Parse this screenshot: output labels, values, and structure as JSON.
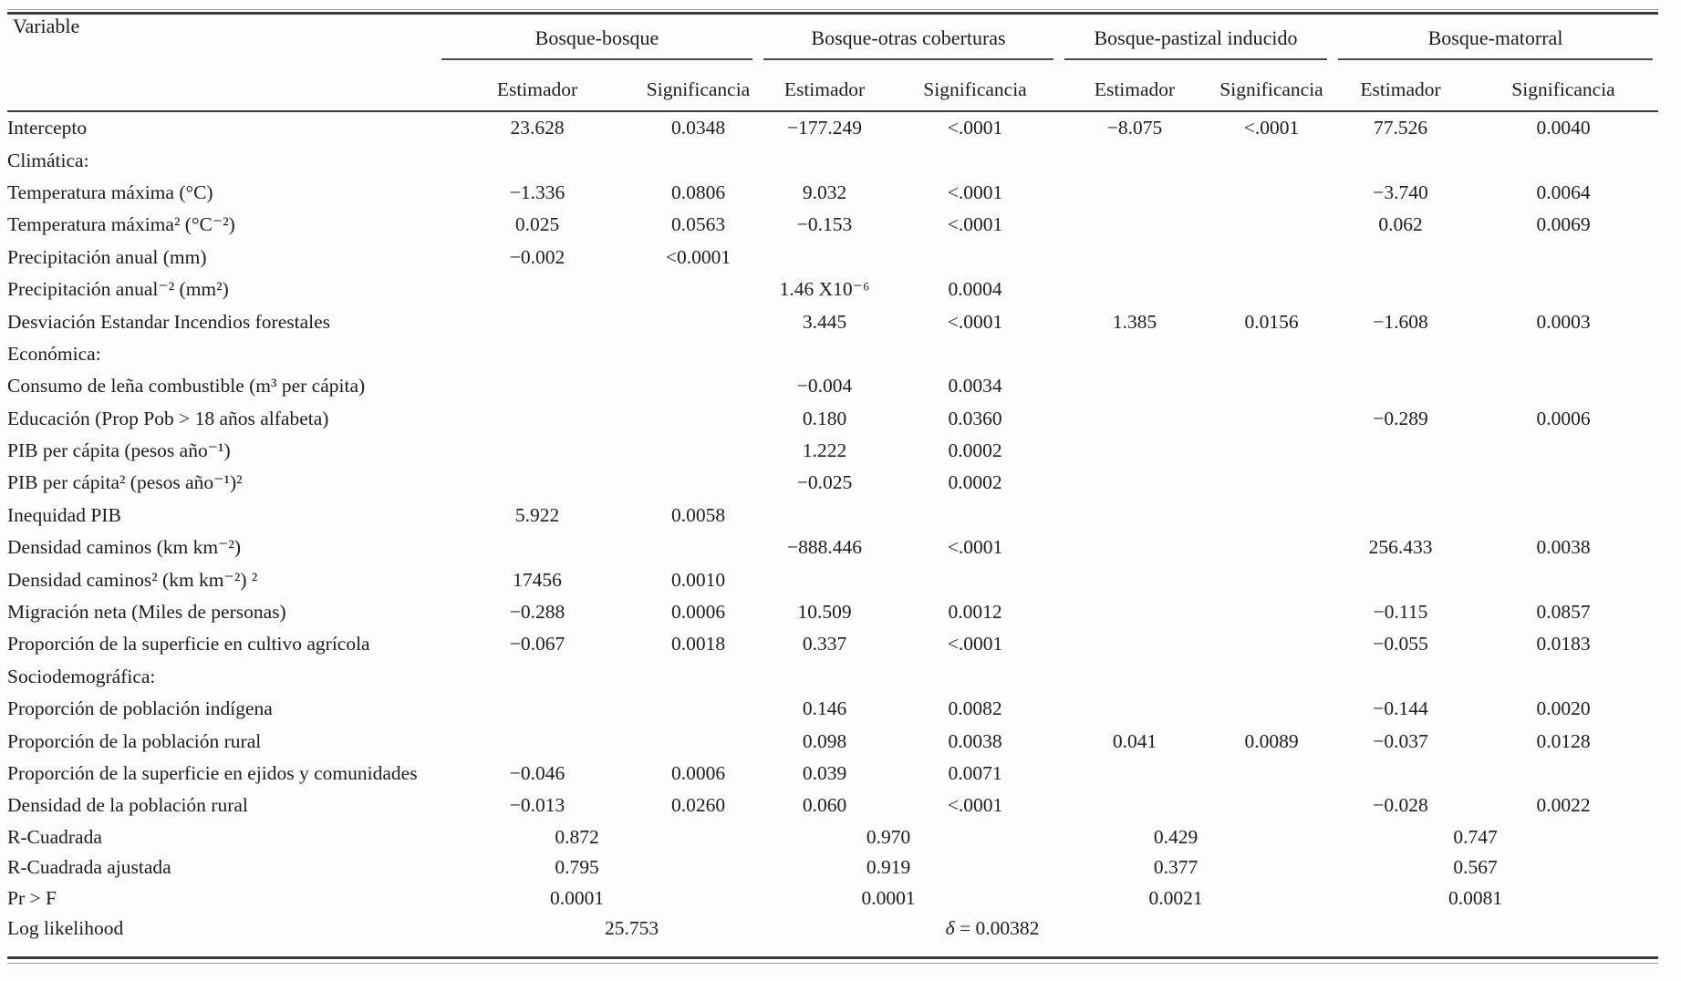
{
  "table": {
    "variable_header": "Variable",
    "groups": [
      {
        "label": "Bosque-bosque"
      },
      {
        "label": "Bosque-otras coberturas"
      },
      {
        "label": "Bosque-pastizal inducido"
      },
      {
        "label": "Bosque-matorral"
      }
    ],
    "subheaders": {
      "estimator": "Estimador",
      "significance": "Significancia"
    },
    "rows": [
      {
        "label": "Intercepto",
        "type": "data",
        "cells": [
          "23.628",
          "0.0348",
          "−177.249",
          "<.0001",
          "−8.075",
          "<.0001",
          "77.526",
          "0.0040"
        ]
      },
      {
        "label": "Climática:",
        "type": "section",
        "cells": [
          "",
          "",
          "",
          "",
          "",
          "",
          "",
          ""
        ]
      },
      {
        "label": "Temperatura máxima (°C)",
        "type": "data",
        "cells": [
          "−1.336",
          "0.0806",
          "9.032",
          "<.0001",
          "",
          "",
          "−3.740",
          "0.0064"
        ]
      },
      {
        "label": "Temperatura máxima² (°C⁻²)",
        "type": "data",
        "cells": [
          "0.025",
          "0.0563",
          "−0.153",
          "<.0001",
          "",
          "",
          "0.062",
          "0.0069"
        ]
      },
      {
        "label": "Precipitación anual (mm)",
        "type": "data",
        "cells": [
          "−0.002",
          "<0.0001",
          "",
          "",
          "",
          "",
          "",
          ""
        ]
      },
      {
        "label": "Precipitación anual⁻² (mm²)",
        "type": "data",
        "cells": [
          "",
          "",
          "1.46 X10⁻⁶",
          "0.0004",
          "",
          "",
          "",
          ""
        ]
      },
      {
        "label": "Desviación Estandar Incendios forestales",
        "type": "data",
        "cells": [
          "",
          "",
          "3.445",
          "<.0001",
          "1.385",
          "0.0156",
          "−1.608",
          "0.0003"
        ]
      },
      {
        "label": "Económica:",
        "type": "section",
        "cells": [
          "",
          "",
          "",
          "",
          "",
          "",
          "",
          ""
        ]
      },
      {
        "label": "Consumo de leña combustible (m³ per cápita)",
        "type": "data",
        "cells": [
          "",
          "",
          "−0.004",
          "0.0034",
          "",
          "",
          "",
          ""
        ]
      },
      {
        "label": "Educación (Prop Pob > 18 años alfabeta)",
        "type": "data",
        "cells": [
          "",
          "",
          "0.180",
          "0.0360",
          "",
          "",
          "−0.289",
          "0.0006"
        ]
      },
      {
        "label": "PIB per cápita (pesos año⁻¹)",
        "type": "data",
        "cells": [
          "",
          "",
          "1.222",
          "0.0002",
          "",
          "",
          "",
          ""
        ]
      },
      {
        "label": "PIB per cápita² (pesos año⁻¹)²",
        "type": "data",
        "cells": [
          "",
          "",
          "−0.025",
          "0.0002",
          "",
          "",
          "",
          ""
        ]
      },
      {
        "label": "Inequidad PIB",
        "type": "data",
        "cells": [
          "5.922",
          "0.0058",
          "",
          "",
          "",
          "",
          "",
          ""
        ]
      },
      {
        "label": "Densidad caminos (km km⁻²)",
        "type": "data",
        "cells": [
          "",
          "",
          "−888.446",
          "<.0001",
          "",
          "",
          "256.433",
          "0.0038"
        ]
      },
      {
        "label": "Densidad caminos² (km km⁻²) ²",
        "type": "data",
        "cells": [
          "17456",
          "0.0010",
          "",
          "",
          "",
          "",
          "",
          ""
        ]
      },
      {
        "label": "Migración neta (Miles de personas)",
        "type": "data",
        "cells": [
          "−0.288",
          "0.0006",
          "10.509",
          "0.0012",
          "",
          "",
          "−0.115",
          "0.0857"
        ]
      },
      {
        "label": "Proporción de la superficie en cultivo agrícola",
        "type": "data",
        "cells": [
          "−0.067",
          "0.0018",
          "0.337",
          "<.0001",
          "",
          "",
          "−0.055",
          "0.0183"
        ]
      },
      {
        "label": "Sociodemográfica:",
        "type": "section",
        "cells": [
          "",
          "",
          "",
          "",
          "",
          "",
          "",
          ""
        ]
      },
      {
        "label": "Proporción de población indígena",
        "type": "data",
        "cells": [
          "",
          "",
          "0.146",
          "0.0082",
          "",
          "",
          "−0.144",
          "0.0020"
        ]
      },
      {
        "label": "Proporción de la población rural",
        "type": "data",
        "cells": [
          "",
          "",
          "0.098",
          "0.0038",
          "0.041",
          "0.0089",
          "−0.037",
          "0.0128"
        ]
      },
      {
        "label": "Proporción de la superficie en ejidos y comunidades",
        "type": "data",
        "cells": [
          "−0.046",
          "0.0006",
          "0.039",
          "0.0071",
          "",
          "",
          "",
          ""
        ]
      },
      {
        "label": "Densidad de la población rural",
        "type": "data",
        "cells": [
          "−0.013",
          "0.0260",
          "0.060",
          "<.0001",
          "",
          "",
          "−0.028",
          "0.0022"
        ]
      }
    ],
    "summary_rows": [
      {
        "label": "R-Cuadrada",
        "values": [
          "0.872",
          "0.970",
          "0.429",
          "0.747"
        ]
      },
      {
        "label": "R-Cuadrada ajustada",
        "values": [
          "0.795",
          "0.919",
          "0.377",
          "0.567"
        ]
      },
      {
        "label": "Pr > F",
        "values": [
          "0.0001",
          "0.0001",
          "0.0021",
          "0.0081"
        ]
      },
      {
        "label": "Log likelihood",
        "values": [
          "25.753",
          "δ =  0.00382",
          "",
          ""
        ]
      }
    ]
  }
}
